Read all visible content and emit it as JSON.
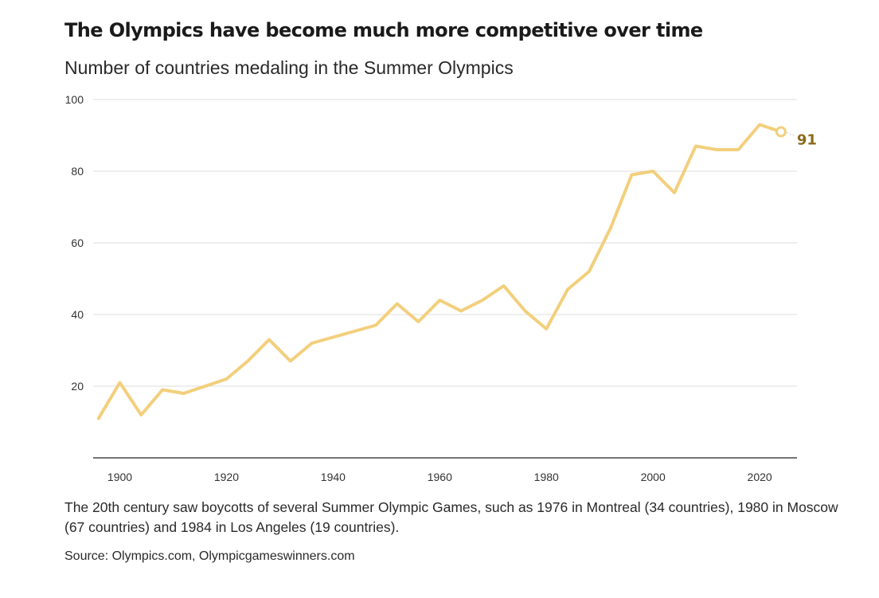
{
  "header": {
    "title": "The Olympics have become much more competitive over time",
    "subtitle": "Number of countries medaling in the Summer Olympics"
  },
  "chart_data": {
    "type": "line",
    "title": "The Olympics have become much more competitive over time",
    "subtitle": "Number of countries medaling in the Summer Olympics",
    "xlabel": "",
    "ylabel": "",
    "xlim": [
      1895,
      2027
    ],
    "ylim": [
      0,
      100
    ],
    "x_ticks": [
      1900,
      1920,
      1940,
      1960,
      1980,
      2000,
      2020
    ],
    "y_ticks": [
      20,
      40,
      60,
      80,
      100
    ],
    "grid": "horizontal",
    "legend": "none",
    "line_color": "#f2cf7c",
    "label_color": "#8a6a1c",
    "series": [
      {
        "x": [
          1896,
          1900,
          1904,
          1908,
          1912,
          1920,
          1924,
          1928,
          1932,
          1936,
          1948,
          1952,
          1956,
          1960,
          1964,
          1968,
          1972,
          1976,
          1980,
          1984,
          1988,
          1992,
          1996,
          2000,
          2004,
          2008,
          2012,
          2016,
          2020,
          2024
        ],
        "values": [
          11,
          21,
          12,
          19,
          18,
          22,
          27,
          33,
          27,
          32,
          37,
          43,
          38,
          44,
          41,
          44,
          48,
          41,
          36,
          47,
          52,
          64,
          79,
          80,
          74,
          87,
          86,
          86,
          93,
          91
        ]
      }
    ],
    "end_label": "91"
  },
  "footer": {
    "note": "The 20th century saw boycotts of several Summer Olympic Games, such as 1976 in Montreal (34 countries), 1980 in Moscow (67 countries) and 1984 in Los Angeles (19 countries).",
    "source": "Source: Olympics.com, Olympicgameswinners.com"
  }
}
